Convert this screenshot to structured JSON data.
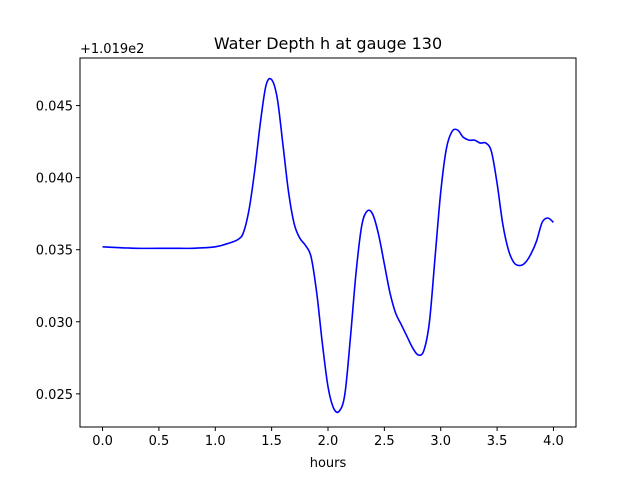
{
  "chart_data": {
    "type": "line",
    "title": "Water Depth h at gauge 130",
    "xlabel": "hours",
    "ylabel": "",
    "offset_label": "+1.019e2",
    "xlim": [
      -0.2,
      4.2
    ],
    "ylim": [
      0.0227,
      0.0483
    ],
    "xticks": [
      0.0,
      0.5,
      1.0,
      1.5,
      2.0,
      2.5,
      3.0,
      3.5,
      4.0
    ],
    "xtick_labels": [
      "0.0",
      "0.5",
      "1.0",
      "1.5",
      "2.0",
      "2.5",
      "3.0",
      "3.5",
      "4.0"
    ],
    "yticks": [
      0.025,
      0.03,
      0.035,
      0.04,
      0.045
    ],
    "ytick_labels": [
      "0.025",
      "0.030",
      "0.035",
      "0.040",
      "0.045"
    ],
    "grid": false,
    "series": [
      {
        "color": "#0000ff",
        "x": [
          0.0,
          0.3,
          0.6,
          0.8,
          1.0,
          1.1,
          1.2,
          1.25,
          1.3,
          1.35,
          1.4,
          1.45,
          1.5,
          1.55,
          1.6,
          1.65,
          1.7,
          1.75,
          1.8,
          1.85,
          1.9,
          1.95,
          2.0,
          2.05,
          2.1,
          2.15,
          2.2,
          2.25,
          2.3,
          2.35,
          2.4,
          2.45,
          2.5,
          2.55,
          2.6,
          2.65,
          2.7,
          2.75,
          2.8,
          2.85,
          2.9,
          2.95,
          3.0,
          3.05,
          3.1,
          3.15,
          3.2,
          3.25,
          3.3,
          3.35,
          3.4,
          3.45,
          3.5,
          3.55,
          3.6,
          3.65,
          3.7,
          3.75,
          3.8,
          3.85,
          3.9,
          3.95,
          4.0
        ],
        "y": [
          0.0352,
          0.0351,
          0.0351,
          0.0351,
          0.0352,
          0.0354,
          0.0357,
          0.0362,
          0.0378,
          0.0405,
          0.0438,
          0.0464,
          0.0468,
          0.0455,
          0.0423,
          0.039,
          0.0368,
          0.0358,
          0.0353,
          0.0345,
          0.032,
          0.0285,
          0.0255,
          0.024,
          0.0238,
          0.025,
          0.029,
          0.0335,
          0.0367,
          0.0377,
          0.0374,
          0.036,
          0.034,
          0.032,
          0.0306,
          0.0298,
          0.029,
          0.0282,
          0.0277,
          0.028,
          0.03,
          0.0345,
          0.039,
          0.042,
          0.0432,
          0.0433,
          0.0428,
          0.0426,
          0.0426,
          0.0424,
          0.0424,
          0.0418,
          0.0396,
          0.0368,
          0.035,
          0.0341,
          0.0339,
          0.0341,
          0.0347,
          0.0356,
          0.0369,
          0.0372,
          0.0369
        ]
      }
    ]
  }
}
